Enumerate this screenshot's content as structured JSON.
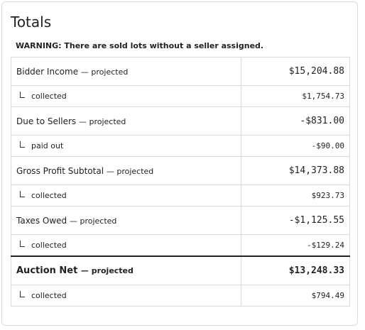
{
  "header": {
    "title": "Totals",
    "warning": "WARNING: There are sold lots without a seller assigned."
  },
  "table": {
    "rows": [
      {
        "label": "Bidder Income",
        "note": "— projected",
        "value": "$15,204.88"
      },
      {
        "label": "collected",
        "value": "$1,754.73",
        "sub": true
      },
      {
        "label": "Due to Sellers",
        "note": "— projected",
        "value": "-$831.00"
      },
      {
        "label": "paid out",
        "value": "-$90.00",
        "sub": true
      },
      {
        "label": "Gross Profit Subtotal",
        "note": "— projected",
        "value": "$14,373.88"
      },
      {
        "label": "collected",
        "value": "$923.73",
        "sub": true
      },
      {
        "label": "Taxes Owed",
        "note": "— projected",
        "value": "-$1,125.55"
      },
      {
        "label": "collected",
        "value": "-$129.24",
        "sub": true
      },
      {
        "label": "Auction Net",
        "note": "— projected",
        "value": "$13,248.33",
        "total": true
      },
      {
        "label": "collected",
        "value": "$794.49",
        "sub": true
      }
    ]
  }
}
